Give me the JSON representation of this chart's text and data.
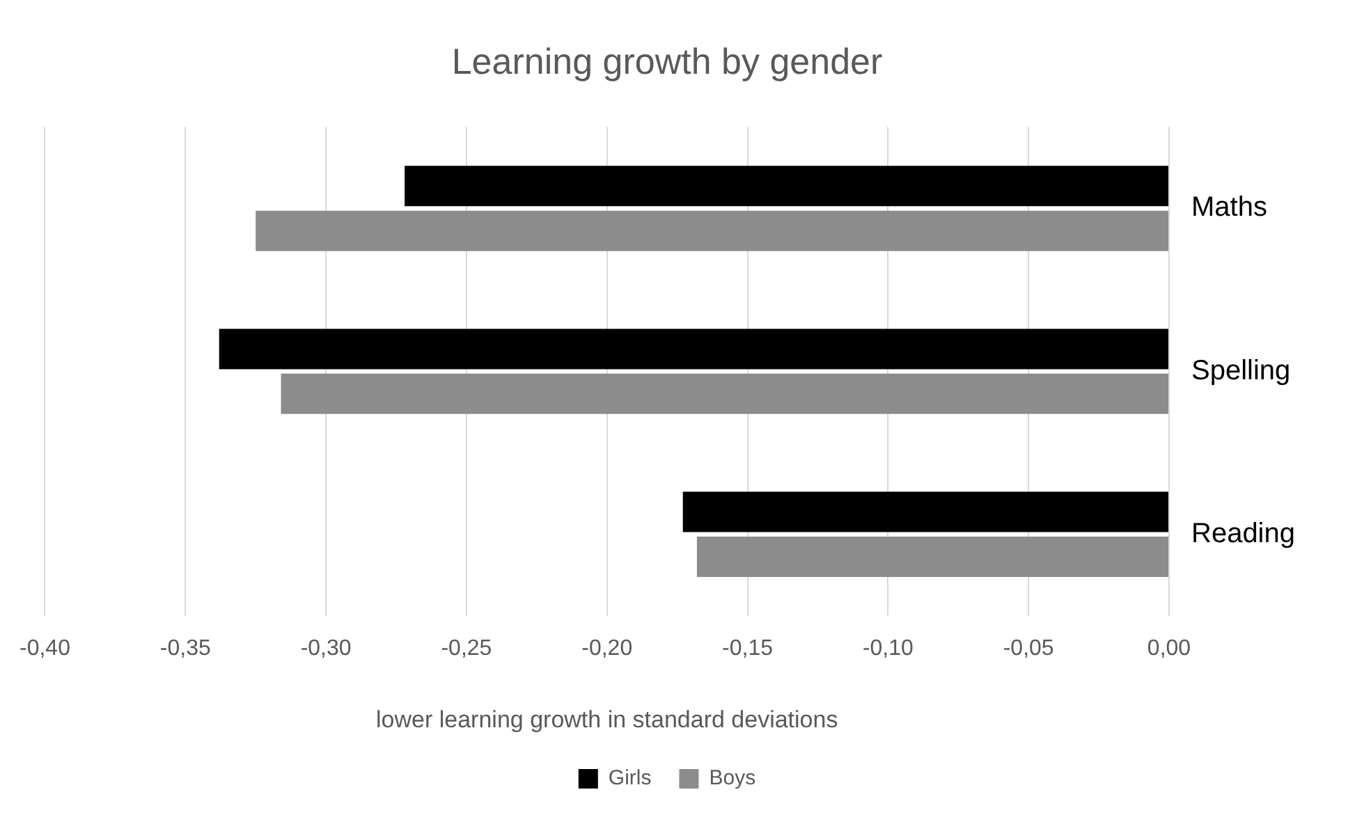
{
  "chart_data": {
    "type": "bar",
    "orientation": "horizontal",
    "title": "Learning growth by gender",
    "xlabel": "lower learning growth in standard deviations",
    "categories": [
      "Maths",
      "Spelling",
      "Reading"
    ],
    "series": [
      {
        "name": "Girls",
        "color": "#000000",
        "values": [
          -0.272,
          -0.338,
          -0.173
        ]
      },
      {
        "name": "Boys",
        "color": "#8c8c8c",
        "values": [
          -0.325,
          -0.316,
          -0.168
        ]
      }
    ],
    "xlim": [
      -0.4,
      0
    ],
    "xticks": [
      {
        "value": -0.4,
        "label": "-0,40"
      },
      {
        "value": -0.35,
        "label": "-0,35"
      },
      {
        "value": -0.3,
        "label": "-0,30"
      },
      {
        "value": -0.25,
        "label": "-0,25"
      },
      {
        "value": -0.2,
        "label": "-0,20"
      },
      {
        "value": -0.15,
        "label": "-0,15"
      },
      {
        "value": -0.1,
        "label": "-0,10"
      },
      {
        "value": -0.05,
        "label": "-0,05"
      },
      {
        "value": 0,
        "label": "0,00"
      }
    ],
    "grid": "x",
    "legend": "bottom"
  }
}
